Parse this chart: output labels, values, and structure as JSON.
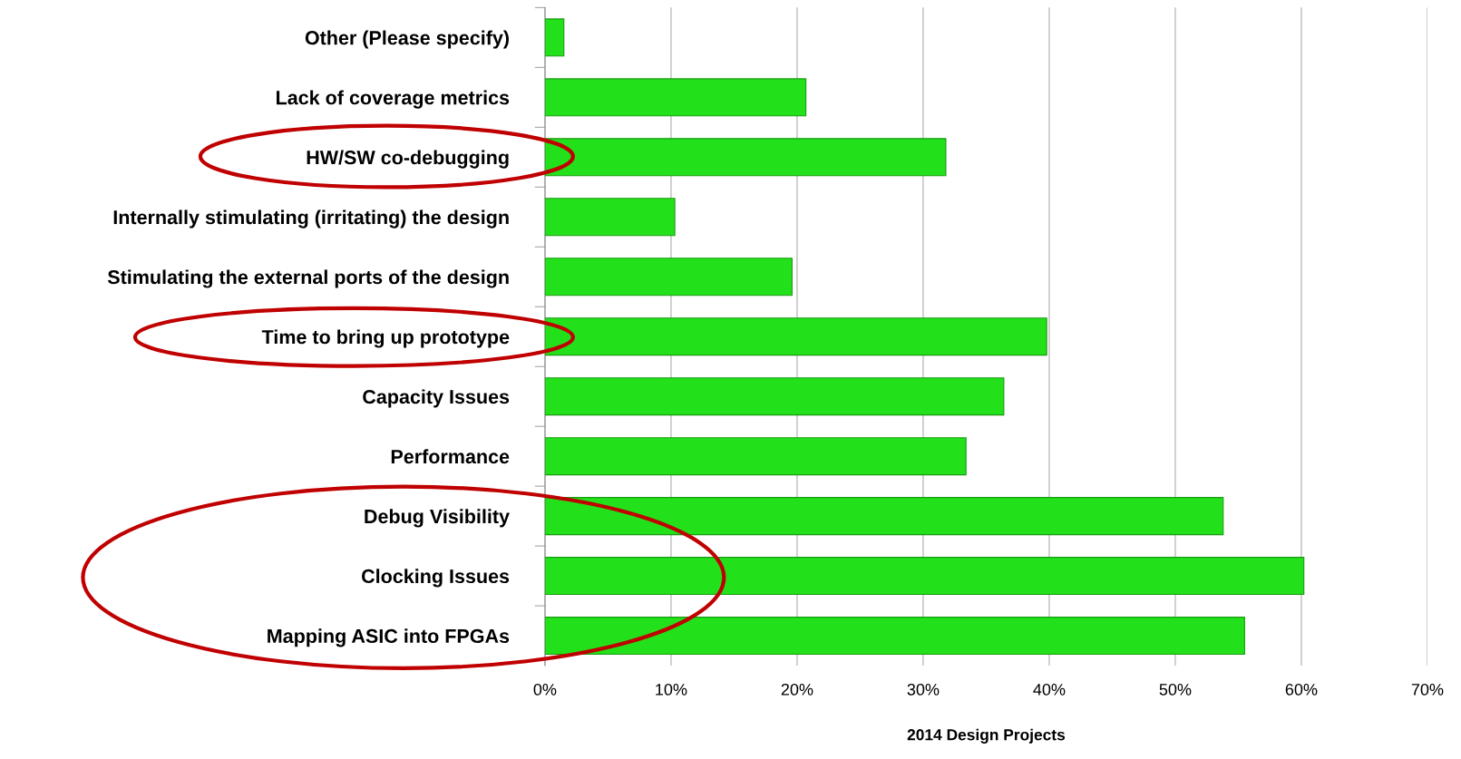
{
  "chart_data": {
    "type": "bar",
    "orientation": "horizontal",
    "xlabel": "2014 Design Projects",
    "categories": [
      "Other (Please specify)",
      "Lack of coverage metrics",
      "HW/SW co-debugging",
      "Internally stimulating (irritating) the design",
      "Stimulating the external ports of the design",
      "Time to bring up prototype",
      "Capacity Issues",
      "Performance",
      "Debug Visibility",
      "Clocking Issues",
      "Mapping ASIC into FPGAs"
    ],
    "values": [
      1.5,
      20.7,
      31.8,
      10.3,
      19.6,
      39.8,
      36.4,
      33.4,
      53.8,
      60.2,
      55.5
    ],
    "color": "#22e01a",
    "xlim": [
      0,
      70
    ],
    "xticks": [
      {
        "value": 0,
        "label": "0%"
      },
      {
        "value": 10,
        "label": "10%"
      },
      {
        "value": 20,
        "label": "20%"
      },
      {
        "value": 30,
        "label": "30%"
      },
      {
        "value": 40,
        "label": "40%"
      },
      {
        "value": 50,
        "label": "50%"
      },
      {
        "value": 60,
        "label": "60%"
      },
      {
        "value": 70,
        "label": "70%"
      }
    ],
    "grid": "x"
  }
}
